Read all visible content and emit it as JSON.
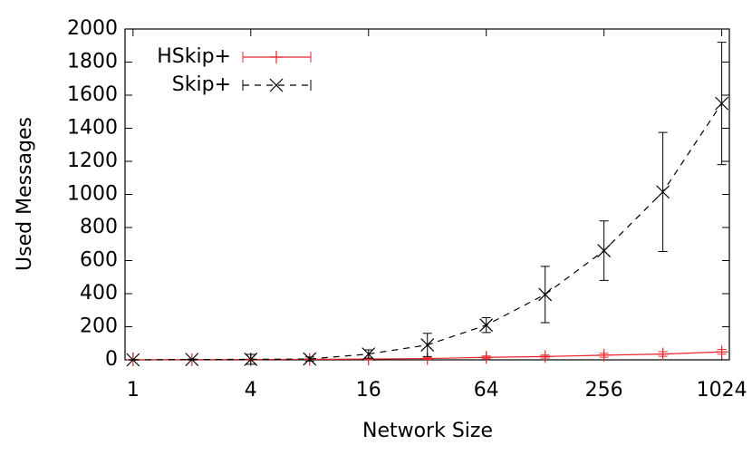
{
  "chart_data": {
    "type": "line",
    "x_label": "Network Size",
    "y_label": "Used Messages",
    "x": [
      1,
      2,
      4,
      8,
      16,
      32,
      64,
      128,
      256,
      512,
      1024
    ],
    "xscale": "log2",
    "xlim": [
      0.91,
      1120
    ],
    "xticks": [
      1,
      4,
      16,
      64,
      256,
      1024
    ],
    "ylim": [
      0,
      2000
    ],
    "yticks": [
      0,
      200,
      400,
      600,
      800,
      1000,
      1200,
      1400,
      1600,
      1800,
      2000
    ],
    "legend": "top-left",
    "series": [
      {
        "name": "HSkip+",
        "color": "#e8262a",
        "dash": false,
        "marker": "plus",
        "values": [
          0,
          1,
          2,
          3,
          5,
          8,
          15,
          20,
          28,
          35,
          48
        ],
        "errors": [
          1,
          2,
          3,
          3,
          4,
          5,
          8,
          9,
          12,
          14,
          14
        ]
      },
      {
        "name": "Skip+",
        "color": "#000000",
        "dash": true,
        "marker": "cross",
        "values": [
          0,
          2,
          3,
          5,
          35,
          90,
          210,
          395,
          660,
          1015,
          1550
        ],
        "errors": [
          1,
          3,
          30,
          12,
          25,
          70,
          45,
          170,
          180,
          360,
          370
        ]
      }
    ]
  }
}
